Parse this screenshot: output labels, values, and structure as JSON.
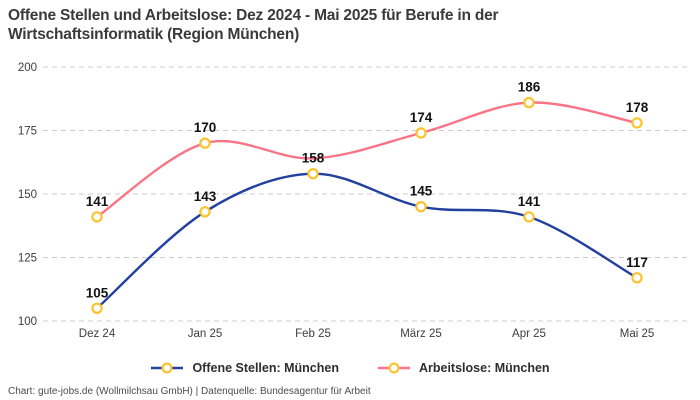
{
  "title": {
    "line1": "Offene Stellen und Arbeitslose: Dez 2024 - Mai 2025 für Berufe in der",
    "line2": "Wirtschaftsinformatik (Region München)"
  },
  "footer": "Chart: gute-jobs.de (Wollmilchsau GmbH) | Datenquelle: Bundesagentur für Arbeit",
  "chart_data": {
    "type": "line",
    "title": "Offene Stellen und Arbeitslose: Dez 2024 - Mai 2025 für Berufe in der Wirtschaftsinformatik (Region München)",
    "categories": [
      "Dez 24",
      "Jan 25",
      "Feb 25",
      "März 25",
      "Apr 25",
      "Mai 25"
    ],
    "yticks": [
      200,
      175,
      150,
      125,
      100
    ],
    "ylim": [
      100,
      200
    ],
    "xlabel": "",
    "ylabel": "",
    "grid": "horizontal dashed",
    "grid_color": "#cccccc",
    "marker_color": "#fcc32d",
    "marker_fill": "#ffffff",
    "legend_position": "bottom",
    "series": [
      {
        "name": "Offene Stellen: München",
        "color": "#22409e",
        "values": [
          105,
          143,
          158,
          145,
          141,
          117
        ],
        "labels": [
          105,
          143,
          158,
          145,
          141,
          117
        ]
      },
      {
        "name": "Arbeitslose: München",
        "color": "#f97487",
        "values": [
          141,
          170,
          164,
          174,
          186,
          178
        ],
        "labels": [
          141,
          170,
          null,
          174,
          186,
          178
        ]
      }
    ]
  }
}
